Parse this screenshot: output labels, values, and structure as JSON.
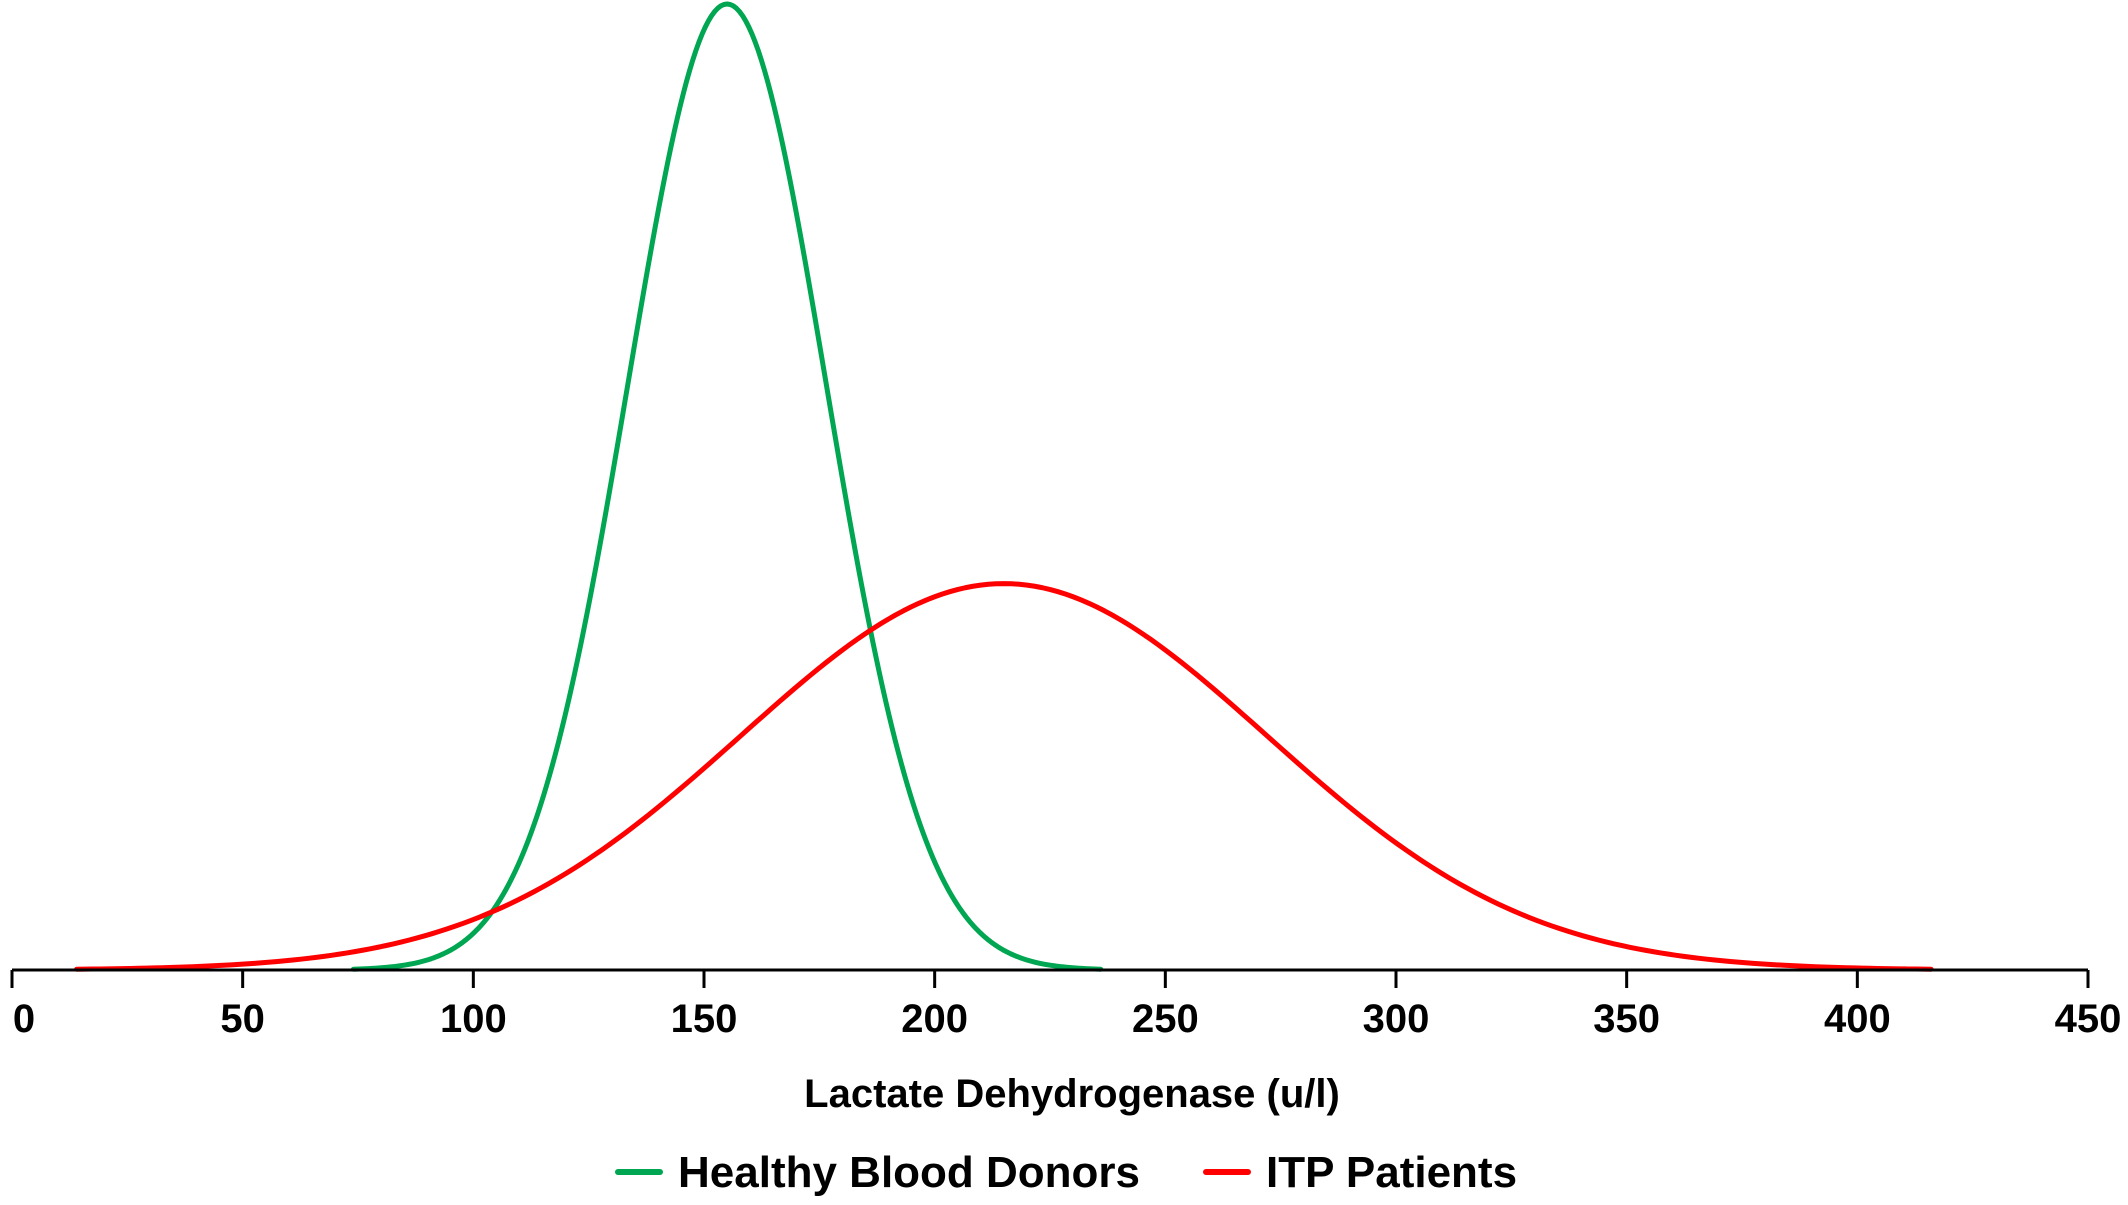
{
  "chart_data": {
    "type": "line",
    "title": "",
    "xlabel": "Lactate Dehydrogenase (u/l)",
    "ylabel": "",
    "xlim": [
      0,
      450
    ],
    "ylim": [
      0,
      1
    ],
    "x_ticks": [
      0,
      50,
      100,
      150,
      200,
      250,
      300,
      350,
      400,
      450
    ],
    "x_tick_labels": [
      "0",
      "50",
      "100",
      "150",
      "200",
      "250",
      "300",
      "350",
      "400",
      "450"
    ],
    "y_axis_visible": false,
    "grid": false,
    "legend_position": "bottom-center",
    "series": [
      {
        "name": "Healthy Blood Donors",
        "color": "#00a651",
        "distribution": "normal",
        "mean": 155,
        "sd": 21.5,
        "x_start": 74,
        "x_end": 236,
        "peak_height": 1.0
      },
      {
        "name": "ITP Patients",
        "color": "#ff0000",
        "distribution": "normal",
        "mean": 215,
        "sd": 57,
        "x_start": 14,
        "x_end": 416,
        "peak_height": 0.4
      }
    ]
  }
}
